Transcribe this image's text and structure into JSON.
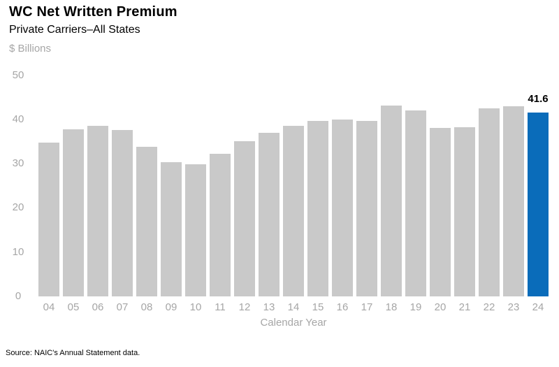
{
  "chart_data": {
    "type": "bar",
    "title": "WC Net Written Premium",
    "subtitle": "Private Carriers–All States",
    "units_label": "$ Billions",
    "xlabel": "Calendar Year",
    "categories": [
      "04",
      "05",
      "06",
      "07",
      "08",
      "09",
      "10",
      "11",
      "12",
      "13",
      "14",
      "15",
      "16",
      "17",
      "18",
      "19",
      "20",
      "21",
      "22",
      "23",
      "24"
    ],
    "values": [
      34.7,
      37.8,
      38.6,
      37.6,
      33.8,
      30.3,
      29.9,
      32.3,
      35.1,
      36.9,
      38.5,
      39.7,
      40.0,
      39.7,
      43.2,
      42.0,
      38.0,
      38.2,
      42.5,
      43.0,
      41.6
    ],
    "ylim": [
      0,
      50
    ],
    "yticks": [
      0,
      10,
      20,
      30,
      40,
      50
    ],
    "grid": false,
    "legend": false,
    "highlight_index": 20,
    "data_label": {
      "index": 20,
      "text": "41.6"
    },
    "colors": {
      "bar": "#C9C9C9",
      "highlight": "#0A6CBA",
      "axis_text": "#A6A6A6",
      "title_text": "#000000",
      "data_label_text": "#000000"
    }
  },
  "footer": {
    "source": "Source: NAIC's Annual Statement data."
  }
}
